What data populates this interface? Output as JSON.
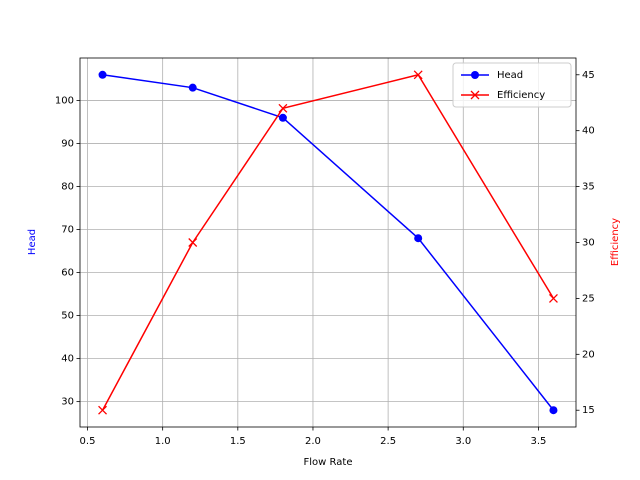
{
  "chart_data": {
    "type": "line",
    "x": [
      0.6,
      1.2,
      1.8,
      2.7,
      3.6
    ],
    "xlabel": "Flow Rate",
    "ylabel": "Head",
    "y2label": "Efficiency",
    "xlim": [
      0.45,
      3.75
    ],
    "xticks": [
      0.5,
      {
        "value": 1,
        "label": "1.0"
      },
      1.5,
      {
        "value": 2,
        "label": "2.0"
      },
      2.5,
      {
        "value": 3,
        "label": "3.0"
      },
      3.5
    ],
    "ylim": [
      24.1,
      109.9
    ],
    "yticks": [
      30,
      40,
      50,
      60,
      70,
      80,
      90,
      100
    ],
    "y2lim": [
      13.5,
      46.5
    ],
    "y2ticks": [
      15,
      20,
      25,
      30,
      35,
      40,
      45
    ],
    "grid": true,
    "legend": "upper right",
    "series": [
      {
        "name": "Head",
        "color": "blue",
        "marker": "o",
        "values": [
          106,
          103,
          96,
          68,
          28
        ]
      },
      {
        "name": "Efficiency",
        "color": "red",
        "marker": "x",
        "axis": "y2",
        "values": [
          15,
          30,
          42,
          45,
          25
        ]
      }
    ]
  }
}
